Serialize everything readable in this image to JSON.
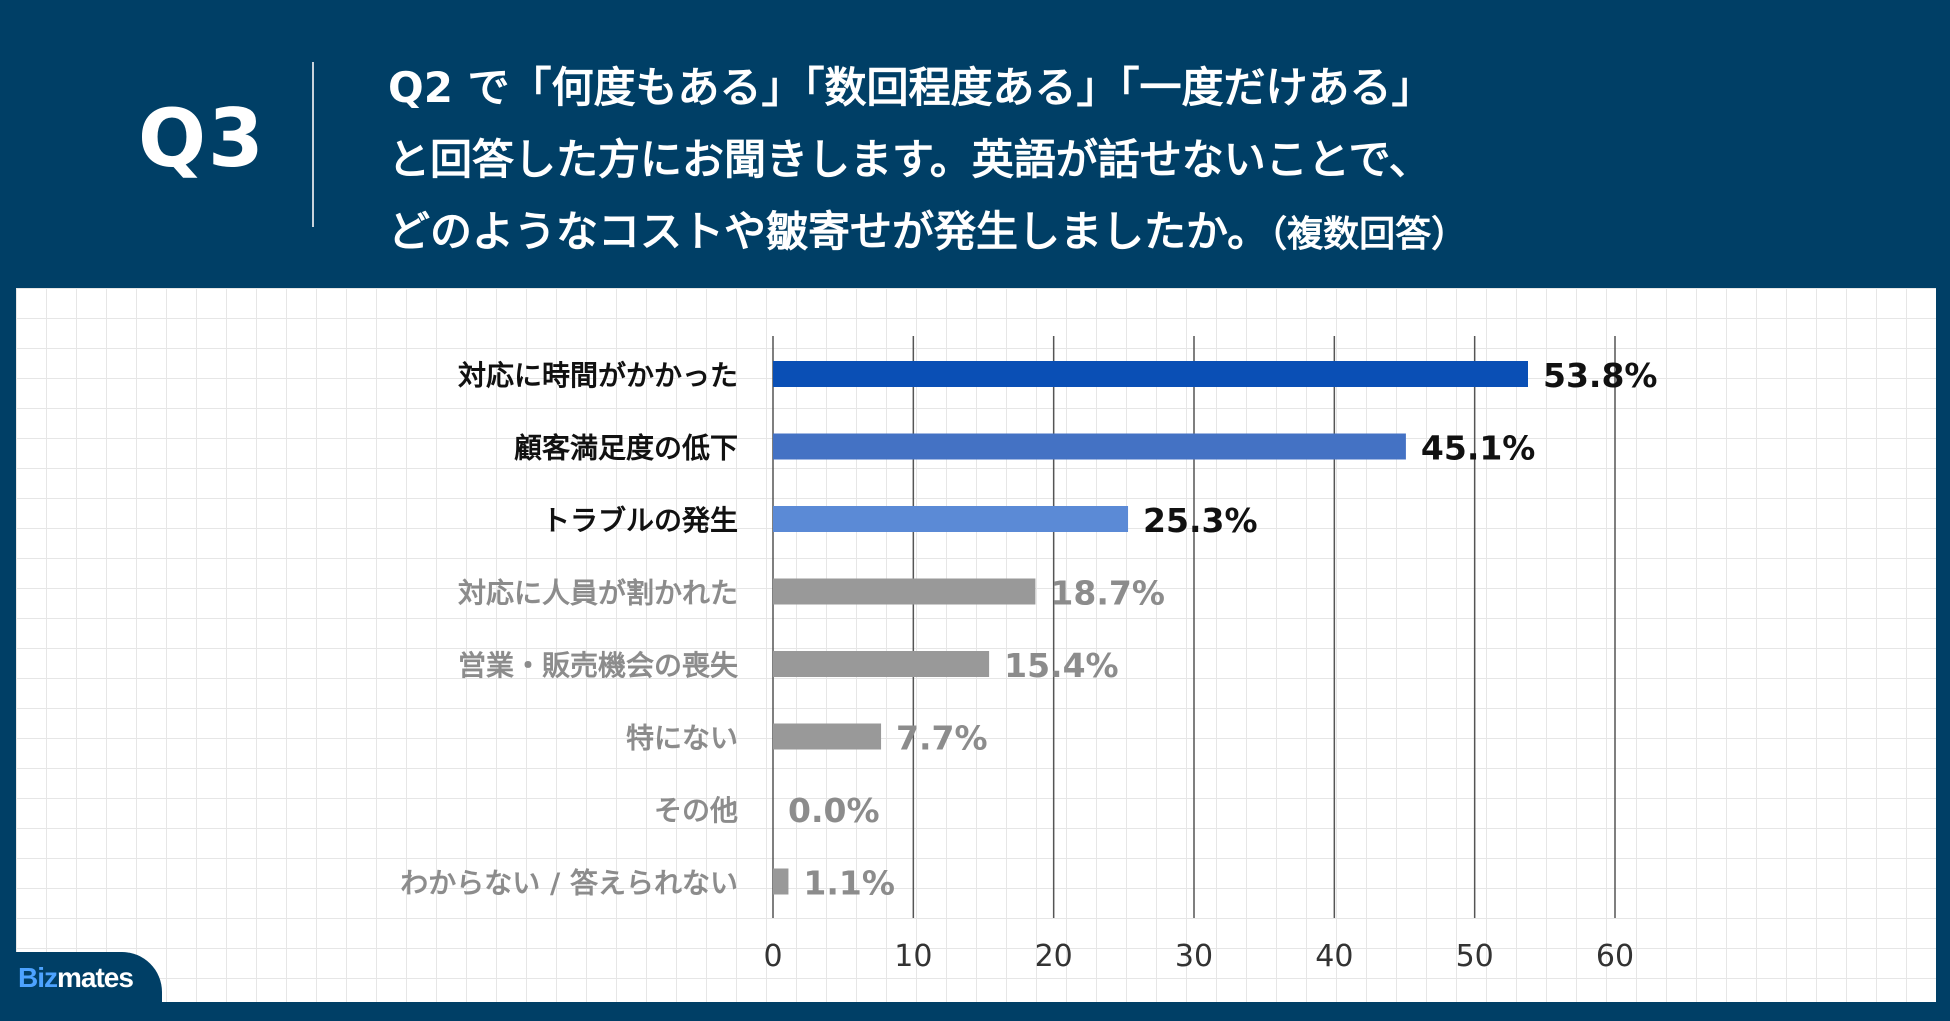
{
  "header": {
    "q_label": "Q3",
    "question_lines": [
      "Q2 で「何度もある」「数回程度ある」「一度だけある」",
      "と回答した方にお聞きします。英語が話せないことで、",
      "どのようなコストや皺寄せが発生しましたか。"
    ],
    "question_suffix": "（複数回答）"
  },
  "logo": {
    "prefix": "Biz",
    "suffix": "mates"
  },
  "chart_data": {
    "type": "bar",
    "orientation": "horizontal",
    "title": "",
    "xlabel": "",
    "ylabel": "",
    "xlim": [
      0,
      60
    ],
    "xticks": [
      0,
      10,
      20,
      30,
      40,
      50,
      60
    ],
    "grid": true,
    "unit": "%",
    "categories": [
      "対応に時間がかかった",
      "顧客満足度の低下",
      "トラブルの発生",
      "対応に人員が割かれた",
      "営業・販売機会の喪失",
      "特にない",
      "その他",
      "わからない / 答えられない"
    ],
    "values": [
      53.8,
      45.1,
      25.3,
      18.7,
      15.4,
      7.7,
      0.0,
      1.1
    ],
    "value_labels": [
      "53.8%",
      "45.1%",
      "25.3%",
      "18.7%",
      "15.4%",
      "7.7%",
      "0.0%",
      "1.1%"
    ],
    "bar_colors": [
      "#0a4fb5",
      "#4472c4",
      "#5b8ad6",
      "#999999",
      "#999999",
      "#999999",
      "#999999",
      "#999999"
    ],
    "label_colors": [
      "#111111",
      "#111111",
      "#111111",
      "#8c8c8c",
      "#8c8c8c",
      "#8c8c8c",
      "#8c8c8c",
      "#8c8c8c"
    ]
  }
}
